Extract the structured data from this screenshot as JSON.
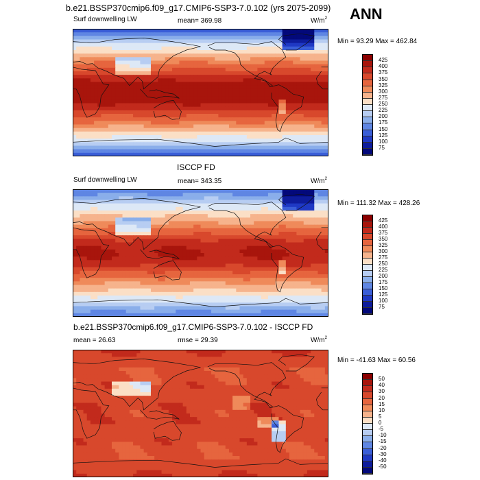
{
  "header": {
    "title": "b.e21.BSSP370cmip6.f09_g17.CMIP6-SSP3-7.0.102 (yrs 2075-2099)",
    "season": "ANN"
  },
  "colors": {
    "land_outline": "#111111",
    "panel_border": "#000000"
  },
  "chart_data": [
    {
      "type": "heatmap",
      "panel": "model",
      "title": "",
      "left_label": "Surf downwelling LW",
      "stat_text": "mean= 369.98",
      "units_base": "W/m",
      "units_exp": "2",
      "minmax": "Min =  93.29 Max = 462.84",
      "mean": 369.98,
      "min": 93.29,
      "max": 462.84,
      "colorbar": {
        "labels": [
          "425",
          "400",
          "375",
          "350",
          "325",
          "300",
          "275",
          "250",
          "225",
          "200",
          "175",
          "150",
          "125",
          "100",
          "75"
        ],
        "colors": [
          "#8b0000",
          "#a8150c",
          "#c22a1c",
          "#d8482c",
          "#e6653e",
          "#ef8a5a",
          "#f6b38c",
          "#fbdfc6",
          "#dde8f6",
          "#b7cdf2",
          "#8aaeea",
          "#5f86e3",
          "#3a5ed8",
          "#1f39c4",
          "#0e1c9c",
          "#03097a"
        ]
      },
      "field": {
        "equator": 415,
        "tropics": 405,
        "midlat": 330,
        "highlat": 240,
        "polar": 130
      }
    },
    {
      "type": "heatmap",
      "panel": "obs",
      "title": "ISCCP FD",
      "left_label": "Surf downwelling LW",
      "stat_text": "mean= 343.35",
      "units_base": "W/m",
      "units_exp": "2",
      "minmax": "Min = 111.32 Max = 428.26",
      "mean": 343.35,
      "min": 111.32,
      "max": 428.26,
      "colorbar": {
        "labels": [
          "425",
          "400",
          "375",
          "350",
          "325",
          "300",
          "275",
          "250",
          "225",
          "200",
          "175",
          "150",
          "125",
          "100",
          "75"
        ],
        "colors": [
          "#8b0000",
          "#a8150c",
          "#c22a1c",
          "#d8482c",
          "#e6653e",
          "#ef8a5a",
          "#f6b38c",
          "#fbdfc6",
          "#dde8f6",
          "#b7cdf2",
          "#8aaeea",
          "#5f86e3",
          "#3a5ed8",
          "#1f39c4",
          "#0e1c9c",
          "#03097a"
        ]
      },
      "field": {
        "equator": 405,
        "tropics": 385,
        "midlat": 310,
        "highlat": 240,
        "polar": 150
      }
    },
    {
      "type": "heatmap",
      "panel": "difference",
      "title": "b.e21.BSSP370cmip6.f09_g17.CMIP6-SSP3-7.0.102 - ISCCP FD",
      "left_label": "mean =  26.63",
      "stat_text": "rmse =  29.39",
      "units_base": "W/m",
      "units_exp": "2",
      "minmax": "Min = -41.63 Max =  60.56",
      "mean": 26.63,
      "rmse": 29.39,
      "min": -41.63,
      "max": 60.56,
      "colorbar": {
        "labels": [
          "50",
          "40",
          "30",
          "20",
          "15",
          "10",
          "5",
          "0",
          "-5",
          "-10",
          "-15",
          "-20",
          "-30",
          "-40",
          "-50"
        ],
        "colors": [
          "#8b0000",
          "#a8150c",
          "#c22a1c",
          "#d8482c",
          "#e6653e",
          "#ef8a5a",
          "#f6b38c",
          "#fbdfc6",
          "#dde8f6",
          "#b7cdf2",
          "#8aaeea",
          "#5f86e3",
          "#3a5ed8",
          "#1f39c4",
          "#0e1c9c",
          "#03097a"
        ]
      },
      "field": {
        "equator": 25,
        "tropics": 28,
        "midlat": 25,
        "highlat": 20,
        "polar": 30
      }
    }
  ]
}
